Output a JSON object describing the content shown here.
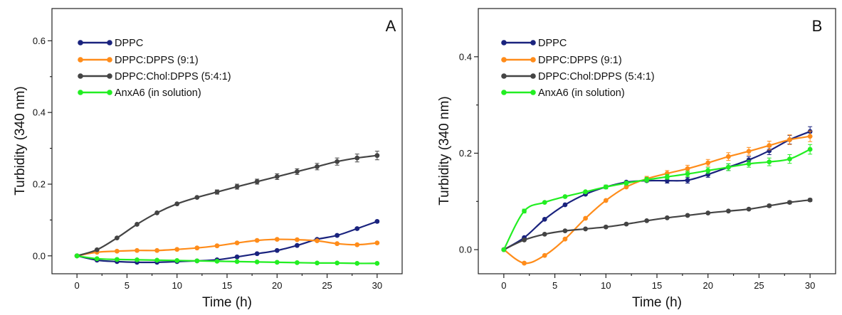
{
  "colors": {
    "dppc": "#1a237e",
    "dppc_dpps": "#ff8c1a",
    "dppc_chol_dpps": "#444444",
    "anxa6": "#22ee22"
  },
  "chart_data": [
    {
      "type": "line",
      "panel_label": "A",
      "xlabel": "Time (h)",
      "ylabel": "Turbidity (340 nm)",
      "xlim": [
        -2.5,
        32.5
      ],
      "ylim": [
        -0.05,
        0.69
      ],
      "xticks": [
        0,
        5,
        10,
        15,
        20,
        25,
        30
      ],
      "yticks": [
        0.0,
        0.2,
        0.4,
        0.6
      ],
      "ytick_labels": [
        "0.0",
        "0.2",
        "0.4",
        "0.6"
      ],
      "legend": "top-left",
      "x": [
        0,
        2,
        4,
        6,
        8,
        10,
        12,
        14,
        16,
        18,
        20,
        22,
        24,
        26,
        28,
        30
      ],
      "series": [
        {
          "name": "DPPC",
          "color_key": "dppc",
          "values": [
            0.0,
            -0.012,
            -0.016,
            -0.018,
            -0.018,
            -0.016,
            -0.014,
            -0.011,
            -0.003,
            0.006,
            0.015,
            0.029,
            0.046,
            0.057,
            0.076,
            0.096
          ],
          "errors": [
            0,
            0,
            0,
            0,
            0,
            0,
            0,
            0,
            0,
            0,
            0,
            0,
            0.003,
            0.003,
            0.003,
            0.003
          ]
        },
        {
          "name": "DPPC:DPPS (9:1)",
          "color_key": "dppc_dpps",
          "values": [
            0.0,
            0.01,
            0.013,
            0.015,
            0.015,
            0.018,
            0.022,
            0.028,
            0.036,
            0.043,
            0.046,
            0.045,
            0.042,
            0.034,
            0.031,
            0.036
          ],
          "errors": [
            0,
            0,
            0,
            0,
            0,
            0,
            0,
            0,
            0,
            0,
            0,
            0,
            0,
            0,
            0,
            0
          ]
        },
        {
          "name": "DPPC:Chol:DPPS (5:4:1)",
          "color_key": "dppc_chol_dpps",
          "values": [
            0.0,
            0.017,
            0.05,
            0.088,
            0.12,
            0.145,
            0.163,
            0.178,
            0.193,
            0.207,
            0.221,
            0.235,
            0.249,
            0.263,
            0.273,
            0.28
          ],
          "errors": [
            0,
            0,
            0,
            0,
            0,
            0,
            0,
            0.006,
            0.007,
            0.007,
            0.008,
            0.008,
            0.009,
            0.01,
            0.011,
            0.012
          ]
        },
        {
          "name": "AnxA6 (in solution)",
          "color_key": "anxa6",
          "values": [
            0.0,
            -0.008,
            -0.01,
            -0.011,
            -0.012,
            -0.013,
            -0.014,
            -0.015,
            -0.016,
            -0.017,
            -0.018,
            -0.019,
            -0.02,
            -0.02,
            -0.021,
            -0.021
          ],
          "errors": [
            0,
            0,
            0,
            0,
            0,
            0,
            0,
            0,
            0,
            0,
            0,
            0,
            0,
            0,
            0,
            0
          ]
        }
      ]
    },
    {
      "type": "line",
      "panel_label": "B",
      "xlabel": "Time (h)",
      "ylabel": "Turbidity (340 nm)",
      "xlim": [
        -2.5,
        32.5
      ],
      "ylim": [
        -0.05,
        0.5
      ],
      "xticks": [
        0,
        5,
        10,
        15,
        20,
        25,
        30
      ],
      "yticks": [
        0.0,
        0.2,
        0.4
      ],
      "ytick_labels": [
        "0.0",
        "0.2",
        "0.4"
      ],
      "legend": "top-left",
      "x": [
        0,
        2,
        4,
        6,
        8,
        10,
        12,
        14,
        16,
        18,
        20,
        22,
        24,
        26,
        28,
        30
      ],
      "series": [
        {
          "name": "DPPC",
          "color_key": "dppc",
          "values": [
            0.0,
            0.025,
            0.063,
            0.093,
            0.115,
            0.13,
            0.14,
            0.143,
            0.143,
            0.144,
            0.156,
            0.171,
            0.186,
            0.205,
            0.228,
            0.245
          ],
          "errors": [
            0,
            0,
            0,
            0,
            0,
            0,
            0,
            0,
            0.005,
            0.006,
            0.006,
            0.007,
            0.007,
            0.008,
            0.009,
            0.01
          ]
        },
        {
          "name": "DPPC:DPPS (9:1)",
          "color_key": "dppc_dpps",
          "values": [
            0.0,
            -0.028,
            -0.012,
            0.022,
            0.065,
            0.102,
            0.13,
            0.147,
            0.158,
            0.168,
            0.18,
            0.193,
            0.204,
            0.216,
            0.228,
            0.235
          ],
          "errors": [
            0,
            0,
            0,
            0,
            0,
            0,
            0,
            0.005,
            0.006,
            0.007,
            0.007,
            0.008,
            0.008,
            0.009,
            0.01,
            0.011
          ]
        },
        {
          "name": "DPPC:Chol:DPPS (5:4:1)",
          "color_key": "dppc_chol_dpps",
          "values": [
            0.0,
            0.02,
            0.032,
            0.039,
            0.043,
            0.047,
            0.053,
            0.06,
            0.066,
            0.071,
            0.076,
            0.08,
            0.084,
            0.091,
            0.098,
            0.103
          ],
          "errors": [
            0,
            0,
            0,
            0,
            0,
            0,
            0,
            0,
            0,
            0,
            0,
            0,
            0,
            0.003,
            0.003,
            0.003
          ]
        },
        {
          "name": "AnxA6 (in solution)",
          "color_key": "anxa6",
          "values": [
            0.0,
            0.08,
            0.098,
            0.11,
            0.12,
            0.13,
            0.138,
            0.145,
            0.151,
            0.157,
            0.164,
            0.171,
            0.178,
            0.182,
            0.188,
            0.208
          ],
          "errors": [
            0,
            0.004,
            0,
            0,
            0,
            0.004,
            0.004,
            0.005,
            0.005,
            0.006,
            0.006,
            0.007,
            0.007,
            0.008,
            0.009,
            0.01
          ]
        }
      ]
    }
  ]
}
